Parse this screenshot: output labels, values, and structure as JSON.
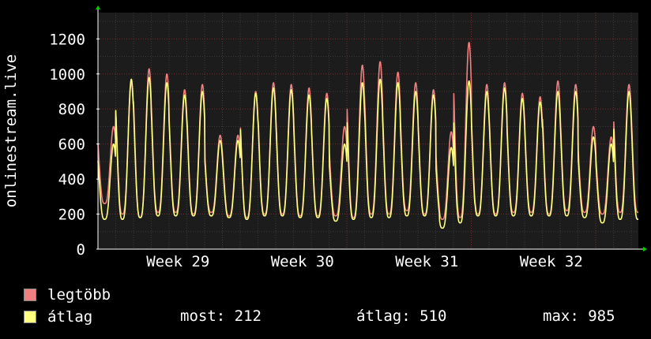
{
  "chart_data": {
    "type": "line",
    "ylabel": "onlinestream.live",
    "ylim": [
      0,
      1350
    ],
    "yticks": [
      0,
      200,
      400,
      600,
      800,
      1000,
      1200
    ],
    "grid": true,
    "x_tick_labels": [
      "Week 29",
      "Week 30",
      "Week 31",
      "Week 32"
    ],
    "x_major_days": [
      0,
      7,
      14,
      21,
      28
    ],
    "x_range_days": [
      0,
      30.4
    ],
    "x_ticks_labeled_at_days": [
      4.5,
      11.5,
      18.5,
      25.5
    ],
    "series": [
      {
        "name": "legtöbb",
        "color": "#f08080",
        "daily": [
          {
            "min": 260,
            "max": 700
          },
          {
            "min": 200,
            "max": 950
          },
          {
            "min": 180,
            "max": 1030
          },
          {
            "min": 210,
            "max": 1000
          },
          {
            "min": 210,
            "max": 910
          },
          {
            "min": 200,
            "max": 940
          },
          {
            "min": 210,
            "max": 650
          },
          {
            "min": 190,
            "max": 650
          },
          {
            "min": 180,
            "max": 900
          },
          {
            "min": 200,
            "max": 950
          },
          {
            "min": 200,
            "max": 940
          },
          {
            "min": 190,
            "max": 920
          },
          {
            "min": 190,
            "max": 890
          },
          {
            "min": 190,
            "max": 700
          },
          {
            "min": 180,
            "max": 1050
          },
          {
            "min": 200,
            "max": 1070
          },
          {
            "min": 200,
            "max": 1010
          },
          {
            "min": 220,
            "max": 950
          },
          {
            "min": 200,
            "max": 910
          },
          {
            "min": 170,
            "max": 670
          },
          {
            "min": 180,
            "max": 1180
          },
          {
            "min": 200,
            "max": 940
          },
          {
            "min": 200,
            "max": 950
          },
          {
            "min": 210,
            "max": 890
          },
          {
            "min": 210,
            "max": 870
          },
          {
            "min": 200,
            "max": 960
          },
          {
            "min": 220,
            "max": 940
          },
          {
            "min": 210,
            "max": 700
          },
          {
            "min": 200,
            "max": 640
          },
          {
            "min": 210,
            "max": 940
          }
        ]
      },
      {
        "name": "átlag",
        "color": "#ffff80",
        "daily": [
          {
            "min": 170,
            "max": 600
          },
          {
            "min": 170,
            "max": 970
          },
          {
            "min": 180,
            "max": 980
          },
          {
            "min": 190,
            "max": 950
          },
          {
            "min": 190,
            "max": 880
          },
          {
            "min": 190,
            "max": 900
          },
          {
            "min": 190,
            "max": 620
          },
          {
            "min": 180,
            "max": 620
          },
          {
            "min": 170,
            "max": 890
          },
          {
            "min": 190,
            "max": 920
          },
          {
            "min": 190,
            "max": 910
          },
          {
            "min": 180,
            "max": 880
          },
          {
            "min": 180,
            "max": 860
          },
          {
            "min": 160,
            "max": 600
          },
          {
            "min": 170,
            "max": 950
          },
          {
            "min": 180,
            "max": 970
          },
          {
            "min": 180,
            "max": 950
          },
          {
            "min": 190,
            "max": 900
          },
          {
            "min": 190,
            "max": 880
          },
          {
            "min": 120,
            "max": 580
          },
          {
            "min": 150,
            "max": 960
          },
          {
            "min": 190,
            "max": 900
          },
          {
            "min": 190,
            "max": 920
          },
          {
            "min": 190,
            "max": 860
          },
          {
            "min": 190,
            "max": 840
          },
          {
            "min": 190,
            "max": 900
          },
          {
            "min": 190,
            "max": 900
          },
          {
            "min": 180,
            "max": 640
          },
          {
            "min": 150,
            "max": 600
          },
          {
            "min": 170,
            "max": 900
          }
        ]
      }
    ]
  },
  "legend": {
    "items": [
      {
        "label": "legtöbb",
        "color": "#f08080"
      },
      {
        "label": "átlag",
        "color": "#ffff80"
      }
    ],
    "stats": {
      "most_label": "most: 212",
      "atlag_label": "átlag: 510",
      "max_label": "max: 985"
    }
  },
  "colors": {
    "background": "#000000",
    "plot_background": "#1c1c1c",
    "grid_minor": "#3a3a3a",
    "grid_major": "#7a2a2a",
    "axis": "#ffffff",
    "arrow": "#00cc00"
  }
}
